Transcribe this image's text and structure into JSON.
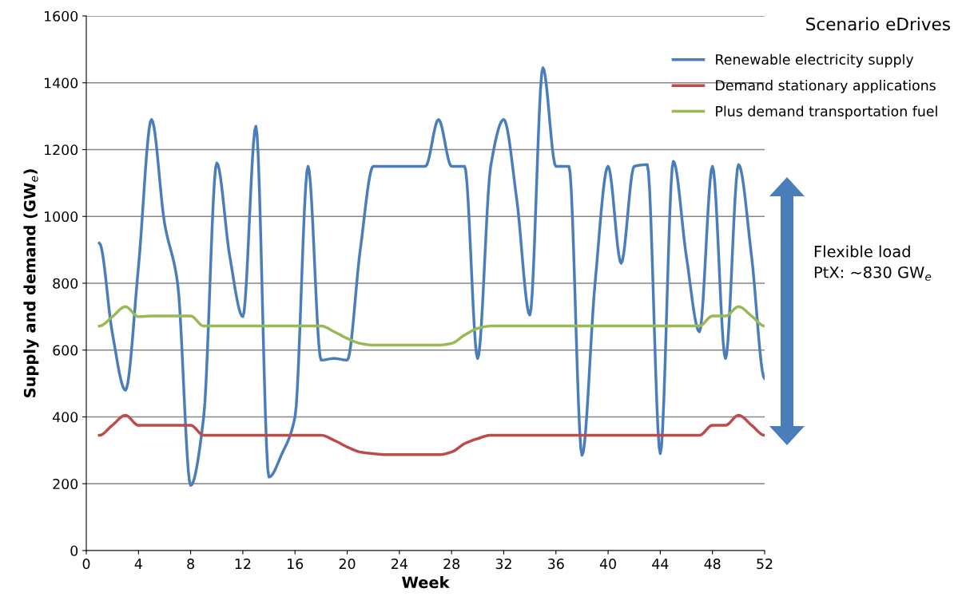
{
  "chart_data": {
    "type": "line",
    "title": "Scenario eDrives",
    "xlabel": "Week",
    "ylabel": "Supply and demand (GW$_{e}$)",
    "x": [
      1,
      2,
      3,
      4,
      5,
      6,
      7,
      8,
      9,
      10,
      11,
      12,
      13,
      14,
      15,
      16,
      17,
      18,
      19,
      20,
      21,
      22,
      23,
      24,
      25,
      26,
      27,
      28,
      29,
      30,
      31,
      32,
      33,
      34,
      35,
      36,
      37,
      38,
      39,
      40,
      41,
      42,
      43,
      44,
      45,
      46,
      47,
      48,
      49,
      50,
      51,
      52
    ],
    "series": [
      {
        "name": "Renewable electricity supply",
        "color": "#4a7ebb",
        "values": [
          920,
          650,
          480,
          850,
          1290,
          980,
          800,
          195,
          400,
          1160,
          880,
          700,
          1270,
          220,
          290,
          400,
          1150,
          570,
          575,
          570,
          900,
          1150,
          1150,
          1150,
          1150,
          1150,
          1290,
          1150,
          1150,
          575,
          1150,
          1290,
          1050,
          705,
          1445,
          1150,
          1150,
          285,
          800,
          1150,
          860,
          1150,
          1155,
          290,
          1165,
          880,
          655,
          1150,
          575,
          1155,
          880,
          515
        ]
      },
      {
        "name": "Demand stationary applications",
        "color": "#be4b48",
        "values": [
          345,
          375,
          405,
          375,
          375,
          375,
          375,
          375,
          345,
          345,
          345,
          345,
          345,
          345,
          345,
          345,
          345,
          345,
          330,
          310,
          295,
          290,
          287,
          287,
          287,
          287,
          287,
          295,
          320,
          335,
          345,
          345,
          345,
          345,
          345,
          345,
          345,
          345,
          345,
          345,
          345,
          345,
          345,
          345,
          345,
          345,
          345,
          375,
          375,
          405,
          375,
          345
        ]
      },
      {
        "name": "Plus demand transportation fuel",
        "color": "#98b954",
        "values": [
          672,
          700,
          730,
          700,
          702,
          702,
          702,
          702,
          672,
          672,
          672,
          672,
          672,
          672,
          672,
          672,
          672,
          672,
          655,
          635,
          620,
          615,
          615,
          615,
          615,
          615,
          615,
          620,
          645,
          665,
          672,
          672,
          672,
          672,
          672,
          672,
          672,
          672,
          672,
          672,
          672,
          672,
          672,
          672,
          672,
          672,
          672,
          702,
          702,
          730,
          702,
          672
        ]
      }
    ],
    "xlim": [
      0,
      52
    ],
    "xticks": [
      0,
      4,
      8,
      12,
      16,
      20,
      24,
      28,
      32,
      36,
      40,
      44,
      48,
      52
    ],
    "ylim": [
      0,
      1600
    ],
    "yticks": [
      0,
      200,
      400,
      600,
      800,
      1000,
      1200,
      1400,
      1600
    ],
    "grid": "y",
    "legend": "top right",
    "line_style": "solid",
    "marker": "none",
    "annotations": [
      "Flexible load\nPtX: ~830 GW$_{e}$"
    ]
  }
}
